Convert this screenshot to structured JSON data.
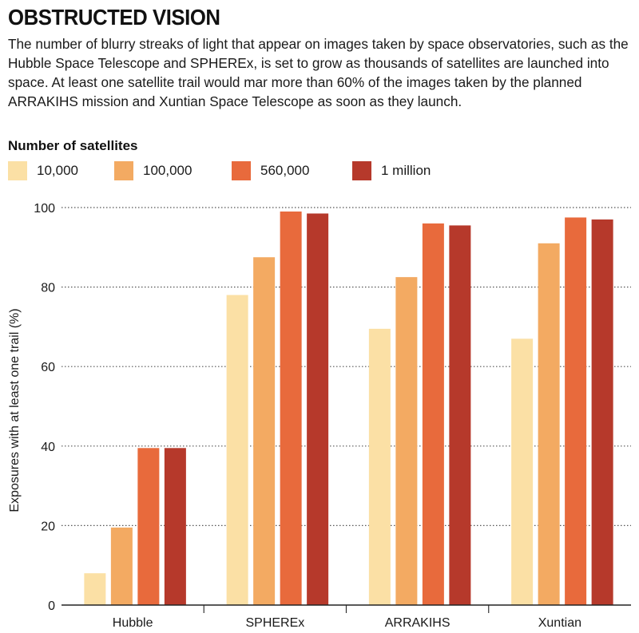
{
  "header": {
    "title": "OBSTRUCTED VISION",
    "subtitle": "The number of blurry streaks of light that appear on images taken by space observatories, such as the Hubble Space Telescope and SPHEREx, is set to grow as thousands of satellites are launched into space. At least one satellite trail would mar more than 60% of the images taken by the planned ARRAKIHS mission and Xuntian Space Telescope as soon as they launch."
  },
  "chart_data": {
    "type": "bar",
    "title": "OBSTRUCTED VISION",
    "xlabel": "",
    "ylabel": "Exposures with at least one trail (%)",
    "ylim": [
      0,
      100
    ],
    "yticks": [
      0,
      20,
      40,
      60,
      80,
      100
    ],
    "grid": "horizontal dotted",
    "legend_title": "Number of satellites",
    "legend_position": "top-left",
    "categories": [
      "Hubble",
      "SPHEREx",
      "ARRAKIHS",
      "Xuntian"
    ],
    "series": [
      {
        "name": "10,000",
        "color": "#fbe0a5",
        "values": [
          8,
          78,
          69.5,
          67
        ]
      },
      {
        "name": "100,000",
        "color": "#f3aa62",
        "values": [
          19.5,
          87.5,
          82.5,
          91
        ]
      },
      {
        "name": "560,000",
        "color": "#e86a3c",
        "values": [
          39.5,
          99,
          96,
          97.5
        ]
      },
      {
        "name": "1 million",
        "color": "#b6392b",
        "values": [
          39.5,
          98.5,
          95.5,
          97
        ]
      }
    ]
  }
}
